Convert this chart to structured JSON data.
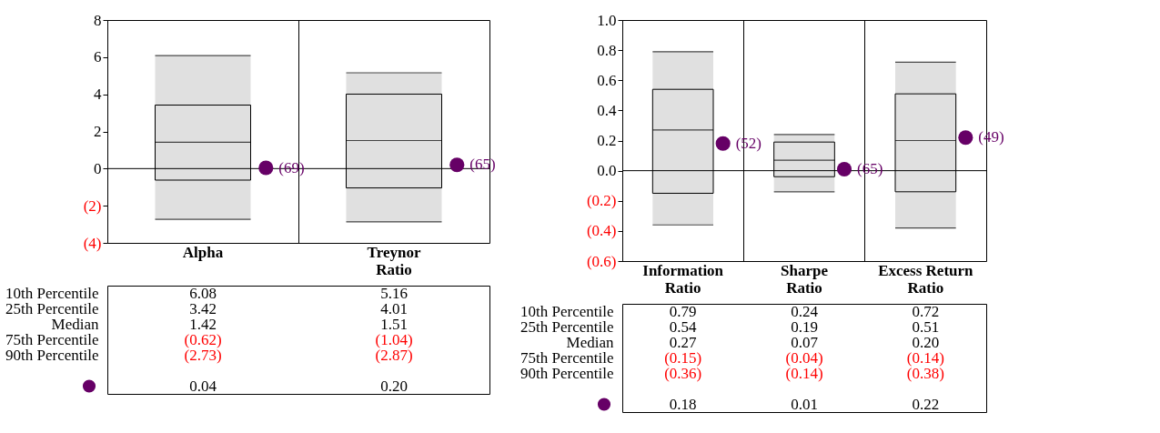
{
  "chart_data": [
    {
      "type": "box",
      "categories": [
        "Alpha",
        "Treynor\nRatio"
      ],
      "boxes": [
        {
          "low": -2.73,
          "q1": -0.62,
          "median": 1.42,
          "q3": 3.42,
          "high": 6.08
        },
        {
          "low": -2.87,
          "q1": -1.04,
          "median": 1.51,
          "q3": 4.01,
          "high": 5.16
        }
      ],
      "series": [
        {
          "type": "scatter",
          "color": "#660066",
          "values": [
            0.04,
            0.2
          ]
        }
      ],
      "ylim": [
        -4,
        8
      ],
      "yticks": [
        {
          "value": -4,
          "label": "(4)"
        },
        {
          "value": -2,
          "label": "(2)"
        },
        0,
        2,
        4,
        6,
        8
      ],
      "ref_lines": [
        {
          "axis": "y",
          "value": 0
        }
      ],
      "grid": "x",
      "annotations": [
        "(69)",
        "(65)",
        "10th Percentile",
        "6.08",
        "5.16",
        "25th Percentile",
        "3.42",
        "4.01",
        "Median",
        "1.42",
        "1.51",
        "75th Percentile",
        "(0.62)",
        "(1.04)",
        "90th Percentile",
        "(2.73)",
        "(2.87)",
        "0.04",
        "0.20"
      ]
    },
    {
      "type": "box",
      "categories": [
        "Information\nRatio",
        "Sharpe\nRatio",
        "Excess Return\nRatio"
      ],
      "boxes": [
        {
          "low": -0.36,
          "q1": -0.15,
          "median": 0.27,
          "q3": 0.54,
          "high": 0.79
        },
        {
          "low": -0.14,
          "q1": -0.04,
          "median": 0.07,
          "q3": 0.19,
          "high": 0.24
        },
        {
          "low": -0.38,
          "q1": -0.14,
          "median": 0.2,
          "q3": 0.51,
          "high": 0.72
        }
      ],
      "series": [
        {
          "type": "scatter",
          "color": "#660066",
          "values": [
            0.18,
            0.01,
            0.22
          ]
        }
      ],
      "ylim": [
        -0.6,
        1.0
      ],
      "yticks": [
        {
          "value": -0.6,
          "label": "(0.6)"
        },
        {
          "value": -0.4,
          "label": "(0.4)"
        },
        {
          "value": -0.2,
          "label": "(0.2)"
        },
        {
          "value": 0,
          "label": "0.0"
        },
        0.2,
        0.4,
        0.6,
        0.8,
        {
          "value": 1.0,
          "label": "1.0"
        }
      ],
      "ref_lines": [
        {
          "axis": "y",
          "value": 0
        }
      ],
      "grid": "x",
      "annotations": [
        "(52)",
        "(65)",
        "(49)",
        "10th Percentile",
        "0.79",
        "0.24",
        "0.72",
        "25th Percentile",
        "0.54",
        "0.19",
        "0.51",
        "Median",
        "0.27",
        "0.07",
        "0.20",
        "75th Percentile",
        "(0.15)",
        "(0.04)",
        "(0.14)",
        "90th Percentile",
        "(0.36)",
        "(0.14)",
        "(0.38)",
        "0.18",
        "0.01",
        "0.22"
      ]
    }
  ]
}
